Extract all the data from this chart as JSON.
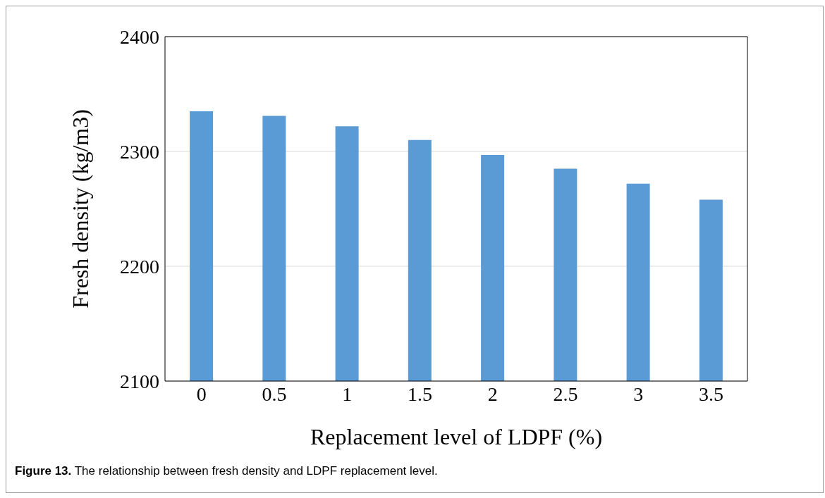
{
  "chart_data": {
    "type": "bar",
    "categories": [
      "0",
      "0.5",
      "1",
      "1.5",
      "2",
      "2.5",
      "3",
      "3.5"
    ],
    "values": [
      2335,
      2331,
      2322,
      2310,
      2297,
      2285,
      2272,
      2258
    ],
    "color": "#5b9bd5",
    "xlabel": "Replacement level of LDPF (%)",
    "ylabel": "Fresh density (kg/m3)",
    "ylim": [
      2100,
      2400
    ],
    "yticks": [
      2100,
      2200,
      2300,
      2400
    ],
    "grid": "y",
    "annotations": [
      "Figure 13. The relationship between fresh density and LDPF replacement level."
    ]
  }
}
